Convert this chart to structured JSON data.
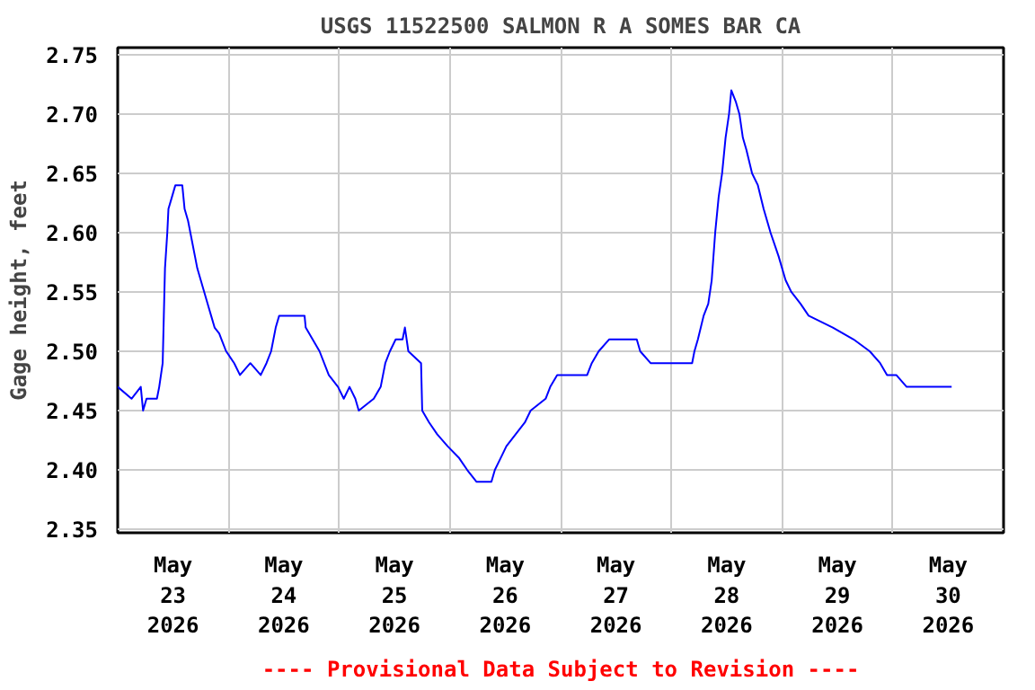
{
  "chart_data": {
    "type": "line",
    "title": "USGS 11522500 SALMON R A SOMES BAR CA",
    "ylabel": "Gage height, feet",
    "annotations": [
      "---- Provisional Data Subject to Revision ----"
    ],
    "xlim": [
      "2026-05-23",
      "2026-05-31"
    ],
    "ylim": [
      2.347,
      2.756
    ],
    "xticks": [
      {
        "value": "2026-05-23",
        "label": null
      },
      {
        "value": "2026-05-23T12:00",
        "label": "May\n23\n2026"
      },
      {
        "value": "2026-05-24",
        "label": null
      },
      {
        "value": "2026-05-24T12:00",
        "label": "May\n24\n2026"
      },
      {
        "value": "2026-05-25",
        "label": null
      },
      {
        "value": "2026-05-25T12:00",
        "label": "May\n25\n2026"
      },
      {
        "value": "2026-05-26",
        "label": null
      },
      {
        "value": "2026-05-26T12:00",
        "label": "May\n26\n2026"
      },
      {
        "value": "2026-05-27",
        "label": null
      },
      {
        "value": "2026-05-27T12:00",
        "label": "May\n27\n2026"
      },
      {
        "value": "2026-05-28",
        "label": null
      },
      {
        "value": "2026-05-28T12:00",
        "label": "May\n28\n2026"
      },
      {
        "value": "2026-05-29",
        "label": null
      },
      {
        "value": "2026-05-29T12:00",
        "label": "May\n29\n2026"
      },
      {
        "value": "2026-05-30",
        "label": null
      },
      {
        "value": "2026-05-30T12:00",
        "label": "May\n30\n2026"
      },
      {
        "value": "2026-05-31",
        "label": null
      }
    ],
    "yticks": [
      {
        "value": 2.35,
        "label": "2.35"
      },
      {
        "value": 2.4,
        "label": "2.40"
      },
      {
        "value": 2.45,
        "label": "2.45"
      },
      {
        "value": 2.5,
        "label": "2.50"
      },
      {
        "value": 2.55,
        "label": "2.55"
      },
      {
        "value": 2.6,
        "label": "2.60"
      },
      {
        "value": 2.65,
        "label": "2.65"
      },
      {
        "value": 2.7,
        "label": "2.70"
      },
      {
        "value": 2.75,
        "label": "2.75"
      }
    ],
    "grid": true,
    "line_style": "solid",
    "series": [
      {
        "color": "#0000ff",
        "x": [
          "2026-05-23T00:00",
          "2026-05-23T03:00",
          "2026-05-23T05:00",
          "2026-05-23T05:30",
          "2026-05-23T06:15",
          "2026-05-23T08:30",
          "2026-05-23T09:00",
          "2026-05-23T09:45",
          "2026-05-23T10:00",
          "2026-05-23T10:15",
          "2026-05-23T10:45",
          "2026-05-23T11:00",
          "2026-05-23T11:45",
          "2026-05-23T12:30",
          "2026-05-23T14:00",
          "2026-05-23T14:30",
          "2026-05-23T15:15",
          "2026-05-23T15:45",
          "2026-05-23T16:45",
          "2026-05-23T17:15",
          "2026-05-23T18:00",
          "2026-05-23T18:45",
          "2026-05-23T19:30",
          "2026-05-23T20:15",
          "2026-05-23T21:00",
          "2026-05-23T22:00",
          "2026-05-23T22:30",
          "2026-05-23T23:30",
          "2026-05-24T01:15",
          "2026-05-24T02:30",
          "2026-05-24T04:45",
          "2026-05-24T07:00",
          "2026-05-24T08:15",
          "2026-05-24T09:15",
          "2026-05-24T10:15",
          "2026-05-24T11:00",
          "2026-05-24T16:30",
          "2026-05-24T16:45",
          "2026-05-24T18:15",
          "2026-05-24T19:45",
          "2026-05-24T21:45",
          "2026-05-24T23:45",
          "2026-05-25T01:00",
          "2026-05-25T02:15",
          "2026-05-25T03:30",
          "2026-05-25T04:15",
          "2026-05-25T07:30",
          "2026-05-25T09:00",
          "2026-05-25T10:00",
          "2026-05-25T11:00",
          "2026-05-25T12:15",
          "2026-05-25T13:45",
          "2026-05-25T14:15",
          "2026-05-25T15:00",
          "2026-05-25T17:45",
          "2026-05-25T18:00",
          "2026-05-25T19:30",
          "2026-05-25T21:15",
          "2026-05-25T23:30",
          "2026-05-26T02:00",
          "2026-05-26T03:45",
          "2026-05-26T05:45",
          "2026-05-26T09:00",
          "2026-05-26T09:45",
          "2026-05-26T11:00",
          "2026-05-26T12:15",
          "2026-05-26T14:15",
          "2026-05-26T16:15",
          "2026-05-26T17:30",
          "2026-05-26T20:45",
          "2026-05-26T21:45",
          "2026-05-26T23:15",
          "2026-05-27T03:00",
          "2026-05-27T05:45",
          "2026-05-27T06:45",
          "2026-05-27T08:15",
          "2026-05-27T10:30",
          "2026-05-27T16:30",
          "2026-05-27T17:15",
          "2026-05-27T19:30",
          "2026-05-28T04:30",
          "2026-05-28T05:00",
          "2026-05-28T05:45",
          "2026-05-28T07:00",
          "2026-05-28T08:00",
          "2026-05-28T08:45",
          "2026-05-28T09:30",
          "2026-05-28T10:15",
          "2026-05-28T11:00",
          "2026-05-28T11:45",
          "2026-05-28T12:30",
          "2026-05-28T13:00",
          "2026-05-28T14:00",
          "2026-05-28T14:45",
          "2026-05-28T15:30",
          "2026-05-28T16:15",
          "2026-05-28T17:30",
          "2026-05-28T18:45",
          "2026-05-28T20:00",
          "2026-05-28T21:30",
          "2026-05-28T23:15",
          "2026-05-29T00:45",
          "2026-05-29T02:00",
          "2026-05-29T04:00",
          "2026-05-29T05:45",
          "2026-05-29T11:00",
          "2026-05-29T15:30",
          "2026-05-29T19:00",
          "2026-05-29T21:15",
          "2026-05-29T22:45",
          "2026-05-30T00:45",
          "2026-05-30T03:00",
          "2026-05-30T12:45"
        ],
        "values": [
          2.47,
          2.46,
          2.47,
          2.45,
          2.46,
          2.46,
          2.47,
          2.49,
          2.53,
          2.57,
          2.6,
          2.62,
          2.63,
          2.64,
          2.64,
          2.62,
          2.61,
          2.6,
          2.58,
          2.57,
          2.56,
          2.55,
          2.54,
          2.53,
          2.52,
          2.515,
          2.51,
          2.5,
          2.49,
          2.48,
          2.49,
          2.48,
          2.49,
          2.5,
          2.52,
          2.53,
          2.53,
          2.52,
          2.51,
          2.5,
          2.48,
          2.47,
          2.46,
          2.47,
          2.46,
          2.45,
          2.46,
          2.47,
          2.49,
          2.5,
          2.51,
          2.51,
          2.52,
          2.5,
          2.49,
          2.45,
          2.44,
          2.43,
          2.42,
          2.41,
          2.4,
          2.39,
          2.39,
          2.4,
          2.41,
          2.42,
          2.43,
          2.44,
          2.45,
          2.46,
          2.47,
          2.48,
          2.48,
          2.48,
          2.49,
          2.5,
          2.51,
          2.51,
          2.5,
          2.49,
          2.49,
          2.5,
          2.51,
          2.53,
          2.54,
          2.56,
          2.6,
          2.63,
          2.65,
          2.68,
          2.7,
          2.72,
          2.71,
          2.7,
          2.68,
          2.67,
          2.65,
          2.64,
          2.62,
          2.6,
          2.58,
          2.56,
          2.55,
          2.54,
          2.53,
          2.52,
          2.51,
          2.5,
          2.49,
          2.48,
          2.48,
          2.47,
          2.47
        ]
      }
    ]
  }
}
